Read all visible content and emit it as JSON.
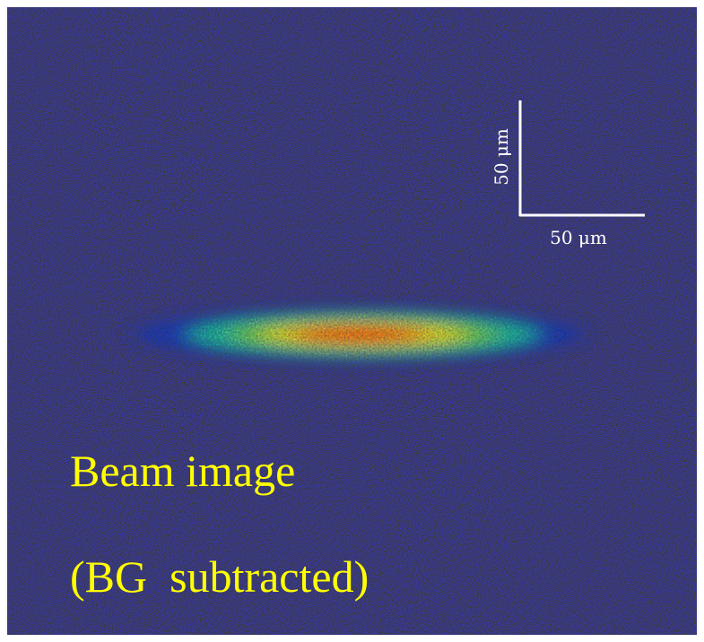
{
  "scale_bar": {
    "vertical_label": "50 μm",
    "horizontal_label": "50 μm"
  },
  "caption": {
    "line1": "Beam image",
    "line2": "(BG  subtracted)"
  }
}
